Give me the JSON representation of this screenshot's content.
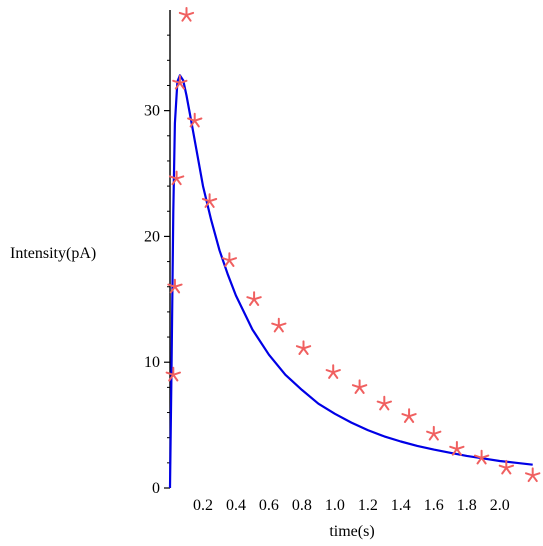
{
  "chart_data": {
    "type": "scatter",
    "title": "",
    "xlabel": "time(s)",
    "ylabel": "Intensity(pA)",
    "xlim": [
      0,
      2.22
    ],
    "ylim": [
      0,
      38
    ],
    "x_ticks": [
      {
        "value": 0.2,
        "label": "0.2"
      },
      {
        "value": 0.4,
        "label": "0.4"
      },
      {
        "value": 0.6,
        "label": "0.6"
      },
      {
        "value": 0.8,
        "label": "0.8"
      },
      {
        "value": 1.0,
        "label": "1.0"
      },
      {
        "value": 1.2,
        "label": "1.2"
      },
      {
        "value": 1.4,
        "label": "1.4"
      },
      {
        "value": 1.6,
        "label": "1.6"
      },
      {
        "value": 1.8,
        "label": "1.8"
      },
      {
        "value": 2.0,
        "label": "2.0"
      }
    ],
    "y_ticks": [
      {
        "value": 0,
        "label": "0"
      },
      {
        "value": 10,
        "label": "10"
      },
      {
        "value": 20,
        "label": "20"
      },
      {
        "value": 30,
        "label": "30"
      }
    ],
    "grid": false,
    "series": [
      {
        "kind": "points",
        "marker": "asterisk",
        "color": "#f06060",
        "points": [
          {
            "x": 0.02,
            "y": 9.0
          },
          {
            "x": 0.03,
            "y": 16.0
          },
          {
            "x": 0.04,
            "y": 24.6
          },
          {
            "x": 0.06,
            "y": 32.2
          },
          {
            "x": 0.1,
            "y": 37.6
          },
          {
            "x": 0.15,
            "y": 29.2
          },
          {
            "x": 0.24,
            "y": 22.8
          },
          {
            "x": 0.36,
            "y": 18.1
          },
          {
            "x": 0.51,
            "y": 15.0
          },
          {
            "x": 0.66,
            "y": 12.9
          },
          {
            "x": 0.81,
            "y": 11.1
          },
          {
            "x": 0.99,
            "y": 9.2
          },
          {
            "x": 1.15,
            "y": 8.0
          },
          {
            "x": 1.3,
            "y": 6.7
          },
          {
            "x": 1.45,
            "y": 5.7
          },
          {
            "x": 1.6,
            "y": 4.3
          },
          {
            "x": 1.74,
            "y": 3.1
          },
          {
            "x": 1.89,
            "y": 2.4
          },
          {
            "x": 2.04,
            "y": 1.6
          },
          {
            "x": 2.2,
            "y": 1.0
          }
        ]
      },
      {
        "kind": "line",
        "color": "#0000e6",
        "points": [
          {
            "x": 0.0,
            "y": 0.0
          },
          {
            "x": 0.01,
            "y": 10.0
          },
          {
            "x": 0.02,
            "y": 22.0
          },
          {
            "x": 0.03,
            "y": 29.0
          },
          {
            "x": 0.045,
            "y": 32.3
          },
          {
            "x": 0.06,
            "y": 32.8
          },
          {
            "x": 0.08,
            "y": 32.4
          },
          {
            "x": 0.1,
            "y": 31.2
          },
          {
            "x": 0.13,
            "y": 29.1
          },
          {
            "x": 0.16,
            "y": 26.9
          },
          {
            "x": 0.2,
            "y": 24.0
          },
          {
            "x": 0.25,
            "y": 21.3
          },
          {
            "x": 0.3,
            "y": 18.9
          },
          {
            "x": 0.35,
            "y": 17.0
          },
          {
            "x": 0.4,
            "y": 15.3
          },
          {
            "x": 0.5,
            "y": 12.6
          },
          {
            "x": 0.6,
            "y": 10.6
          },
          {
            "x": 0.7,
            "y": 9.0
          },
          {
            "x": 0.8,
            "y": 7.8
          },
          {
            "x": 0.9,
            "y": 6.7
          },
          {
            "x": 1.0,
            "y": 5.9
          },
          {
            "x": 1.1,
            "y": 5.2
          },
          {
            "x": 1.2,
            "y": 4.6
          },
          {
            "x": 1.3,
            "y": 4.1
          },
          {
            "x": 1.4,
            "y": 3.7
          },
          {
            "x": 1.5,
            "y": 3.35
          },
          {
            "x": 1.6,
            "y": 3.05
          },
          {
            "x": 1.7,
            "y": 2.8
          },
          {
            "x": 1.8,
            "y": 2.55
          },
          {
            "x": 1.9,
            "y": 2.35
          },
          {
            "x": 2.0,
            "y": 2.15
          },
          {
            "x": 2.1,
            "y": 2.0
          },
          {
            "x": 2.2,
            "y": 1.85
          }
        ]
      }
    ]
  }
}
